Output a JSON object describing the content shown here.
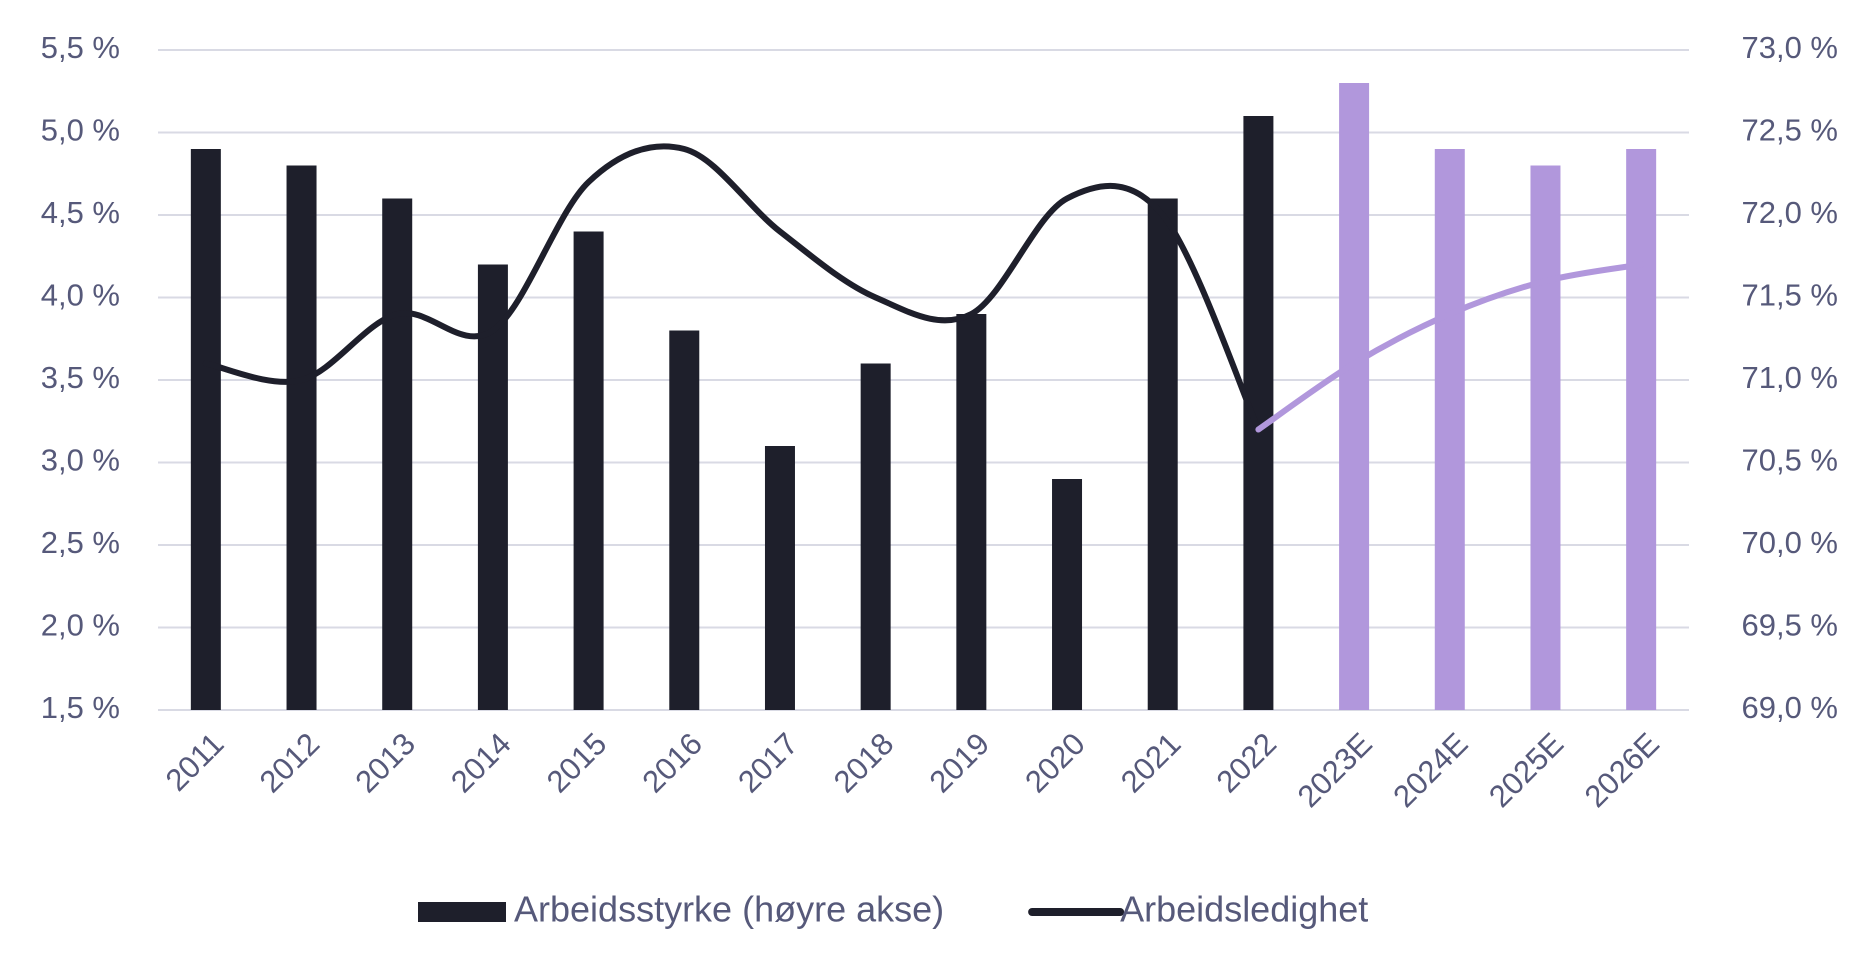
{
  "chart_data": {
    "type": "bar-line",
    "categories": [
      "2011",
      "2012",
      "2013",
      "2014",
      "2015",
      "2016",
      "2017",
      "2018",
      "2019",
      "2020",
      "2021",
      "2022",
      "2023E",
      "2024E",
      "2025E",
      "2026E"
    ],
    "series": [
      {
        "name": "Arbeidsstyrke (høyre akse)",
        "type": "bar",
        "axis": "y2",
        "color": "#1e1f2b",
        "colors": [
          "#1e1f2b",
          "#1e1f2b",
          "#1e1f2b",
          "#1e1f2b",
          "#1e1f2b",
          "#1e1f2b",
          "#1e1f2b",
          "#1e1f2b",
          "#1e1f2b",
          "#1e1f2b",
          "#1e1f2b",
          "#1e1f2b",
          "#b197dc",
          "#b197dc",
          "#b197dc",
          "#b197dc"
        ],
        "values": [
          72.4,
          72.3,
          72.1,
          71.7,
          71.9,
          71.3,
          70.6,
          71.1,
          71.4,
          70.4,
          72.1,
          72.6,
          72.8,
          72.4,
          72.3,
          72.4
        ]
      },
      {
        "name": "Arbeidsledighet",
        "type": "line",
        "axis": "y",
        "color": "#1e1f2b",
        "colors": [
          "#1e1f2b",
          "#1e1f2b",
          "#1e1f2b",
          "#1e1f2b",
          "#1e1f2b",
          "#1e1f2b",
          "#1e1f2b",
          "#1e1f2b",
          "#1e1f2b",
          "#1e1f2b",
          "#1e1f2b",
          "#1e1f2b",
          "#b197dc",
          "#b197dc",
          "#b197dc",
          "#b197dc"
        ],
        "values": [
          3.6,
          3.5,
          3.9,
          3.8,
          4.7,
          4.9,
          4.4,
          4.0,
          3.9,
          4.6,
          4.5,
          3.2,
          3.6,
          3.9,
          4.1,
          4.2
        ]
      }
    ],
    "ylim": [
      1.5,
      5.5
    ],
    "yticks": [
      {
        "value": 1.5,
        "label": "1,5 %"
      },
      {
        "value": 2.0,
        "label": "2,0 %"
      },
      {
        "value": 2.5,
        "label": "2,5 %"
      },
      {
        "value": 3.0,
        "label": "3,0 %"
      },
      {
        "value": 3.5,
        "label": "3,5 %"
      },
      {
        "value": 4.0,
        "label": "4,0 %"
      },
      {
        "value": 4.5,
        "label": "4,5 %"
      },
      {
        "value": 5.0,
        "label": "5,0 %"
      },
      {
        "value": 5.5,
        "label": "5,5 %"
      }
    ],
    "y2lim": [
      69.0,
      73.0
    ],
    "y2ticks": [
      {
        "value": 69.0,
        "label": "69,0 %"
      },
      {
        "value": 69.5,
        "label": "69,5 %"
      },
      {
        "value": 70.0,
        "label": "70,0 %"
      },
      {
        "value": 70.5,
        "label": "70,5 %"
      },
      {
        "value": 71.0,
        "label": "71,0 %"
      },
      {
        "value": 71.5,
        "label": "71,5 %"
      },
      {
        "value": 72.0,
        "label": "72,0 %"
      },
      {
        "value": 72.5,
        "label": "72,5 %"
      },
      {
        "value": 73.0,
        "label": "73,0 %"
      }
    ],
    "grid": true
  }
}
